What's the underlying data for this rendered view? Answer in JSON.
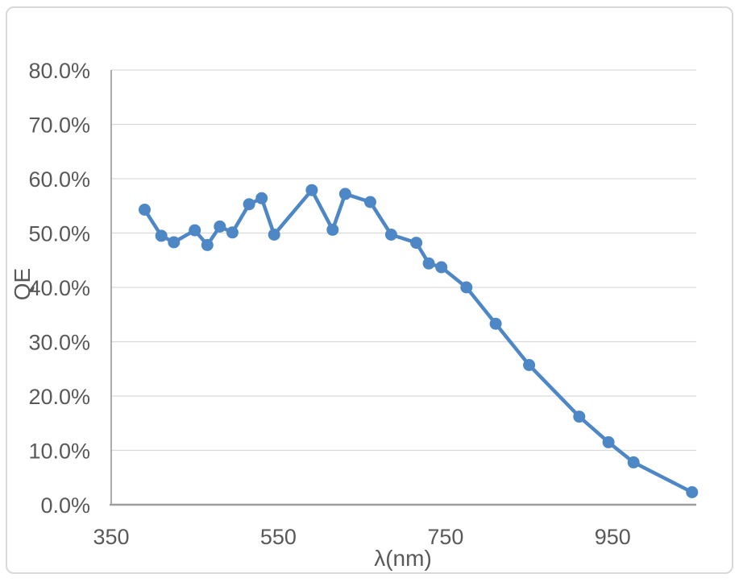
{
  "chart_data": {
    "type": "line",
    "title": "",
    "xlabel": "λ(nm)",
    "ylabel": "QE",
    "x": [
      390,
      410,
      425,
      450,
      465,
      480,
      495,
      515,
      530,
      545,
      590,
      615,
      630,
      660,
      685,
      715,
      730,
      745,
      775,
      810,
      850,
      910,
      945,
      975,
      1045
    ],
    "series": [
      {
        "name": "QE",
        "values": [
          54.3,
          49.5,
          48.3,
          50.5,
          47.8,
          51.2,
          50.1,
          55.3,
          56.4,
          49.7,
          57.9,
          50.6,
          57.2,
          55.7,
          49.7,
          48.2,
          44.4,
          43.7,
          40.0,
          33.3,
          25.7,
          16.2,
          11.5,
          7.8,
          2.3
        ]
      }
    ],
    "xlim": [
      350,
      1050
    ],
    "ylim": [
      0,
      80
    ],
    "x_tick_values": [
      350,
      550,
      750,
      950
    ],
    "x_tick_labels": [
      "350",
      "550",
      "750",
      "950"
    ],
    "y_tick_values": [
      0,
      10,
      20,
      30,
      40,
      50,
      60,
      70,
      80
    ],
    "y_tick_labels": [
      "0.0%",
      "10.0%",
      "20.0%",
      "30.0%",
      "40.0%",
      "50.0%",
      "60.0%",
      "70.0%",
      "80.0%"
    ],
    "grid": "horizontal",
    "legend": "none",
    "marker": "circle"
  },
  "colors": {
    "series": "#4e87c5",
    "gridline": "#d9d9d9",
    "axis_line": "#a3a3a3",
    "baseline": "#9e9e9e",
    "tick_label": "#595959",
    "frame_border": "#d9d9d9",
    "background": "#ffffff"
  }
}
